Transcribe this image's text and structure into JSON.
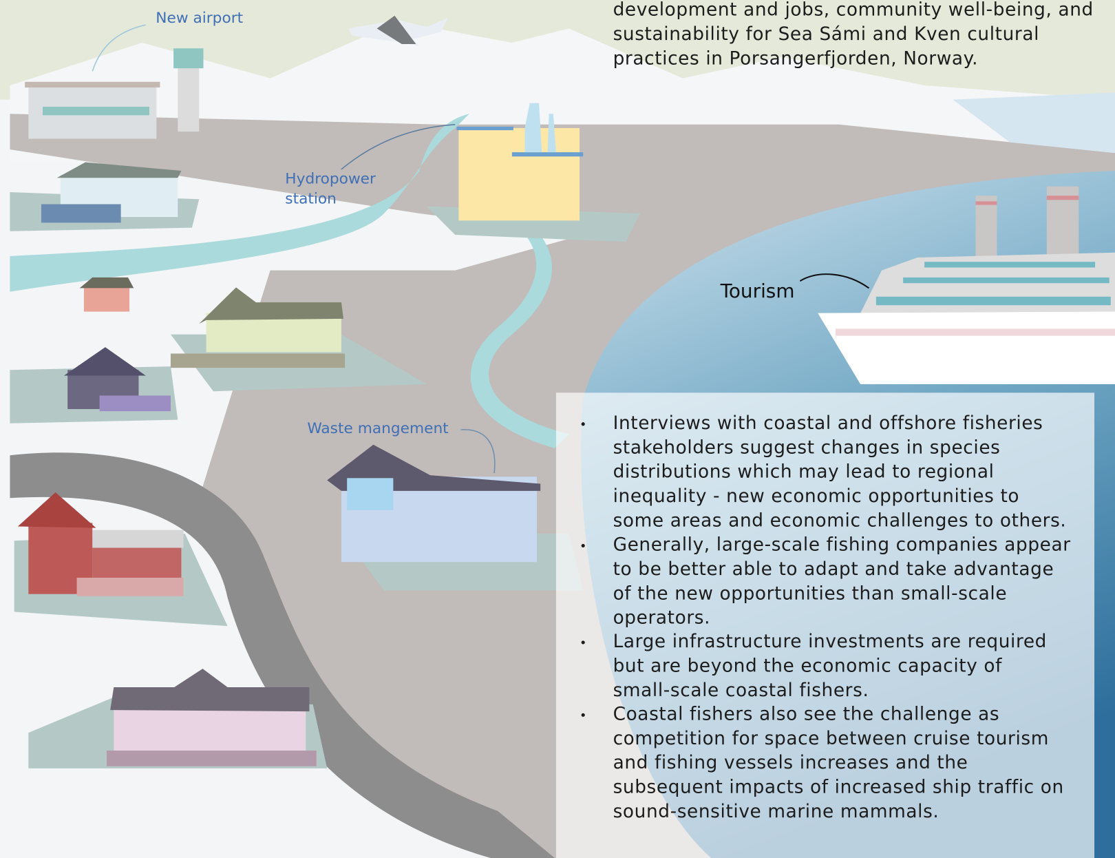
{
  "labels": {
    "new_airport": "New airport",
    "hydropower_station": [
      "Hydropower",
      "station"
    ],
    "waste_management": "Waste mangement",
    "tourism": "Tourism"
  },
  "intro": {
    "lines": [
      "development and jobs, community well-being, and",
      "sustainability for Sea Sámi and Kven cultural",
      "practices in Porsangerfjorden, Norway."
    ]
  },
  "findings": [
    {
      "lines": [
        "Interviews with coastal and offshore fisheries",
        "stakeholders suggest changes in species",
        "distributions which may lead to regional",
        "inequality - new economic opportunities to",
        "some areas and economic challenges to others."
      ]
    },
    {
      "lines": [
        "Generally, large-scale fishing companies appear",
        "to be better able to adapt and take advantage",
        "of the new opportunities than small-scale",
        "operators."
      ]
    },
    {
      "lines": [
        "Large infrastructure investments are required",
        "but are beyond the economic capacity of",
        "small-scale coastal fishers."
      ]
    },
    {
      "lines": [
        "Coastal fishers also see the challenge as",
        "competition for space between cruise tourism",
        "and fishing vessels increases and the",
        "subsequent impacts of increased ship traffic on",
        "sound-sensitive marine mammals."
      ]
    }
  ]
}
